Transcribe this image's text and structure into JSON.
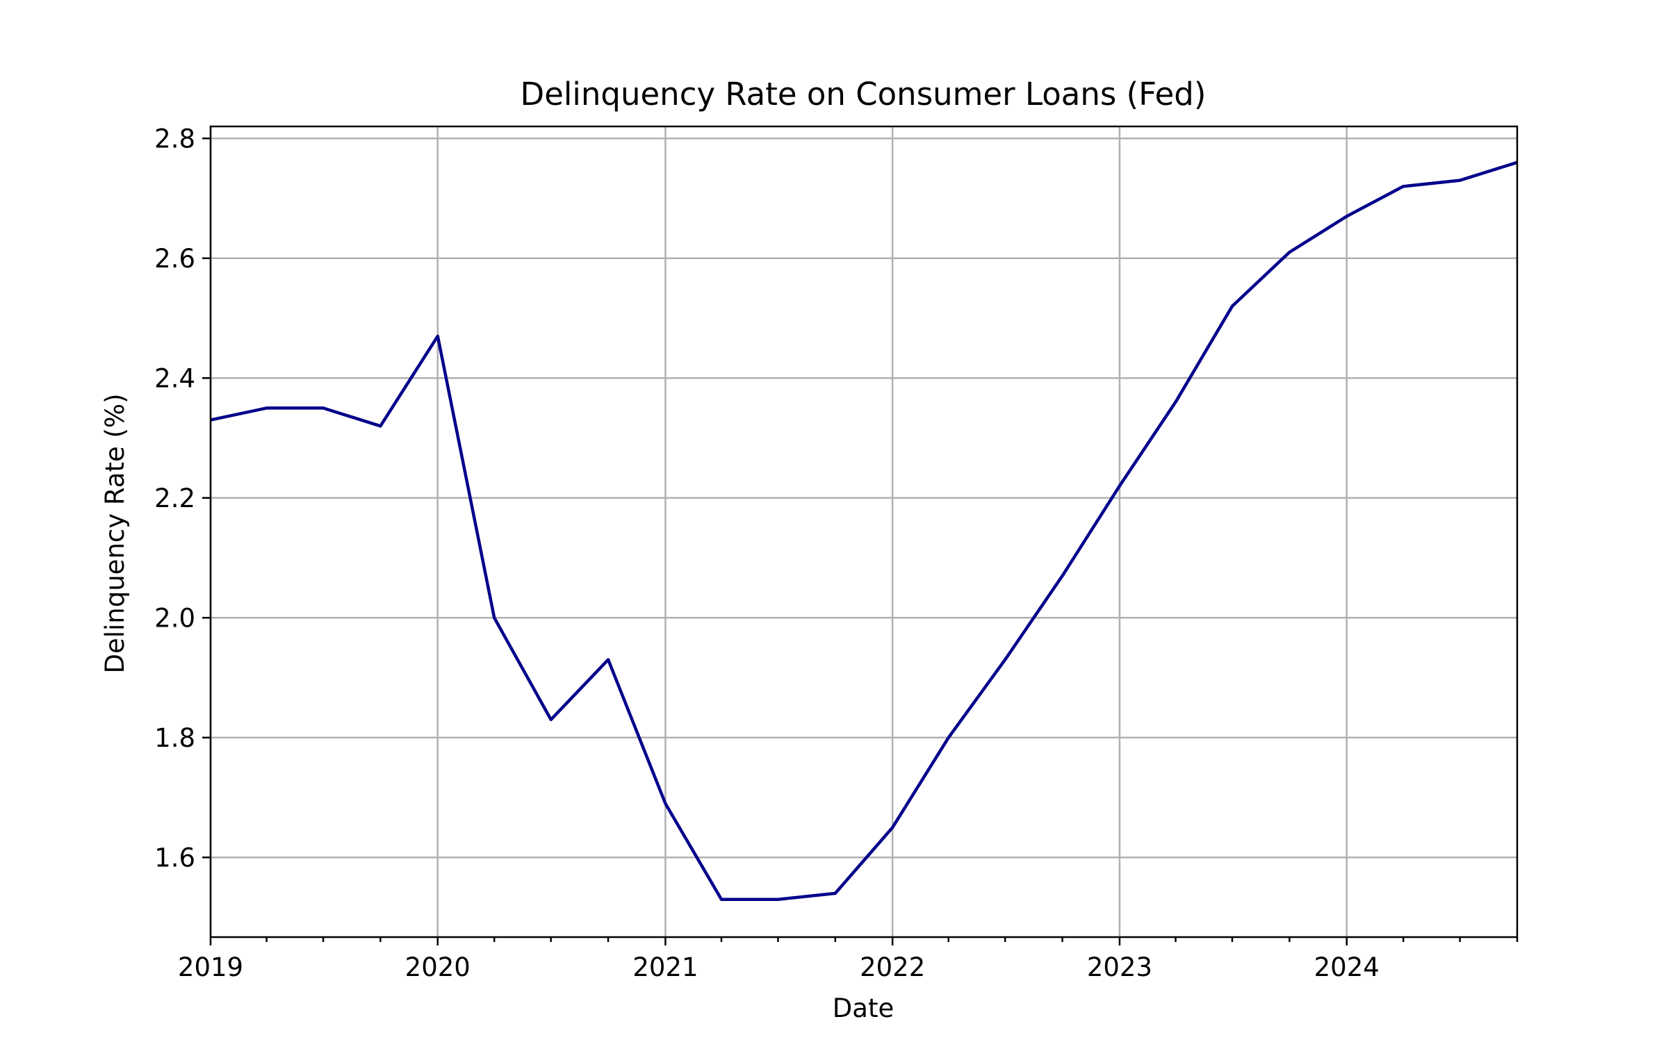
{
  "chart_data": {
    "type": "line",
    "title": "Delinquency Rate on Consumer Loans (Fed)",
    "xlabel": "Date",
    "ylabel": "Delinquency Rate (%)",
    "xlim": [
      "2019-01-01",
      "2024-10-01"
    ],
    "ylim": [
      1.467,
      2.82
    ],
    "x_ticks": [
      "2019",
      "2020",
      "2021",
      "2022",
      "2023",
      "2024"
    ],
    "y_ticks": [
      "1.6",
      "1.8",
      "2.0",
      "2.2",
      "2.4",
      "2.6",
      "2.8"
    ],
    "grid": true,
    "series": [
      {
        "color": "#00008b",
        "x": [
          "2019-01-01",
          "2019-04-01",
          "2019-07-01",
          "2019-10-01",
          "2020-01-01",
          "2020-04-01",
          "2020-07-01",
          "2020-10-01",
          "2021-01-01",
          "2021-04-01",
          "2021-07-01",
          "2021-10-01",
          "2022-01-01",
          "2022-04-01",
          "2022-07-01",
          "2022-10-01",
          "2023-01-01",
          "2023-04-01",
          "2023-07-01",
          "2023-10-01",
          "2024-01-01",
          "2024-04-01",
          "2024-07-01",
          "2024-10-01"
        ],
        "y": [
          2.33,
          2.35,
          2.35,
          2.32,
          2.47,
          2.0,
          1.83,
          1.93,
          1.69,
          1.53,
          1.53,
          1.54,
          1.65,
          1.8,
          1.93,
          2.07,
          2.22,
          2.36,
          2.52,
          2.61,
          2.67,
          2.72,
          2.73,
          2.76
        ]
      }
    ]
  }
}
